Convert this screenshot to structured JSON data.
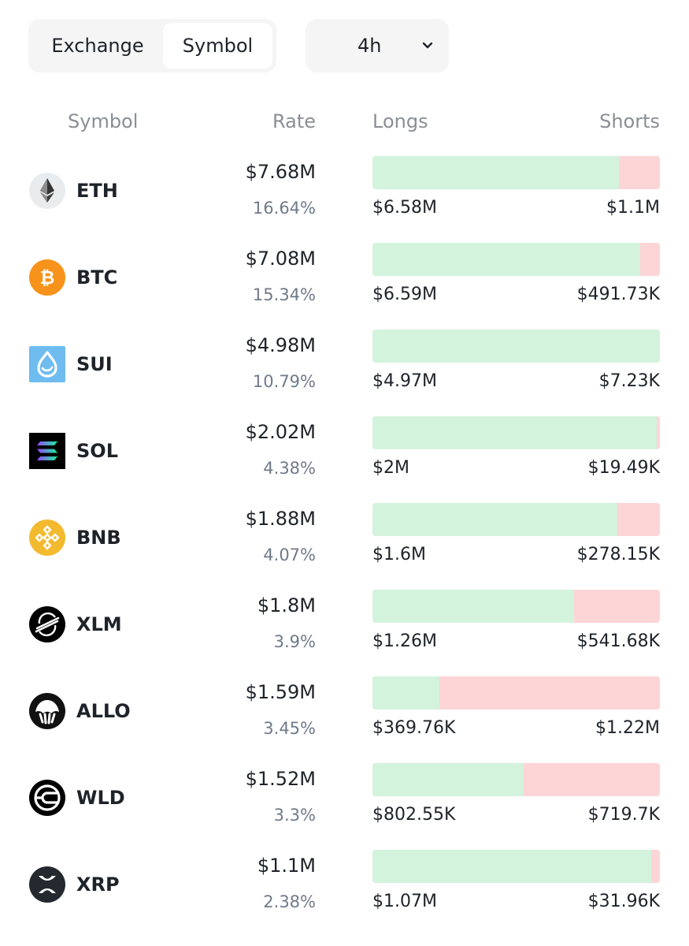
{
  "tabs": {
    "exchange_label": "Exchange",
    "symbol_label": "Symbol",
    "active": "Symbol"
  },
  "timeframe": {
    "value": "4h",
    "icon": "chevron-down-icon"
  },
  "table": {
    "headers": {
      "symbol": "Symbol",
      "rate": "Rate",
      "longs": "Longs",
      "shorts": "Shorts"
    },
    "rows": [
      {
        "symbol": "ETH",
        "icon": "eth-icon",
        "amount": "$7.68M",
        "rate": "16.64%",
        "longs": "$6.58M",
        "shorts": "$1.1M",
        "long_share": 0.857
      },
      {
        "symbol": "BTC",
        "icon": "btc-icon",
        "amount": "$7.08M",
        "rate": "15.34%",
        "longs": "$6.59M",
        "shorts": "$491.73K",
        "long_share": 0.931
      },
      {
        "symbol": "SUI",
        "icon": "sui-icon",
        "amount": "$4.98M",
        "rate": "10.79%",
        "longs": "$4.97M",
        "shorts": "$7.23K",
        "long_share": 0.999
      },
      {
        "symbol": "SOL",
        "icon": "sol-icon",
        "amount": "$2.02M",
        "rate": "4.38%",
        "longs": "$2M",
        "shorts": "$19.49K",
        "long_share": 0.99
      },
      {
        "symbol": "BNB",
        "icon": "bnb-icon",
        "amount": "$1.88M",
        "rate": "4.07%",
        "longs": "$1.6M",
        "shorts": "$278.15K",
        "long_share": 0.852
      },
      {
        "symbol": "XLM",
        "icon": "xlm-icon",
        "amount": "$1.8M",
        "rate": "3.9%",
        "longs": "$1.26M",
        "shorts": "$541.68K",
        "long_share": 0.7
      },
      {
        "symbol": "ALLO",
        "icon": "allo-icon",
        "amount": "$1.59M",
        "rate": "3.45%",
        "longs": "$369.76K",
        "shorts": "$1.22M",
        "long_share": 0.233
      },
      {
        "symbol": "WLD",
        "icon": "wld-icon",
        "amount": "$1.52M",
        "rate": "3.3%",
        "longs": "$802.55K",
        "shorts": "$719.7K",
        "long_share": 0.527
      },
      {
        "symbol": "XRP",
        "icon": "xrp-icon",
        "amount": "$1.1M",
        "rate": "2.38%",
        "longs": "$1.07M",
        "shorts": "$31.96K",
        "long_share": 0.971
      }
    ]
  },
  "colors": {
    "long_bar": "#d3f3dd",
    "short_bar": "#fdd5d6",
    "eth": "#e9ecef",
    "btc": "#f7931a",
    "sui": "#6fbcf0",
    "sol": "#000000",
    "bnb": "#f3ba2f"
  }
}
